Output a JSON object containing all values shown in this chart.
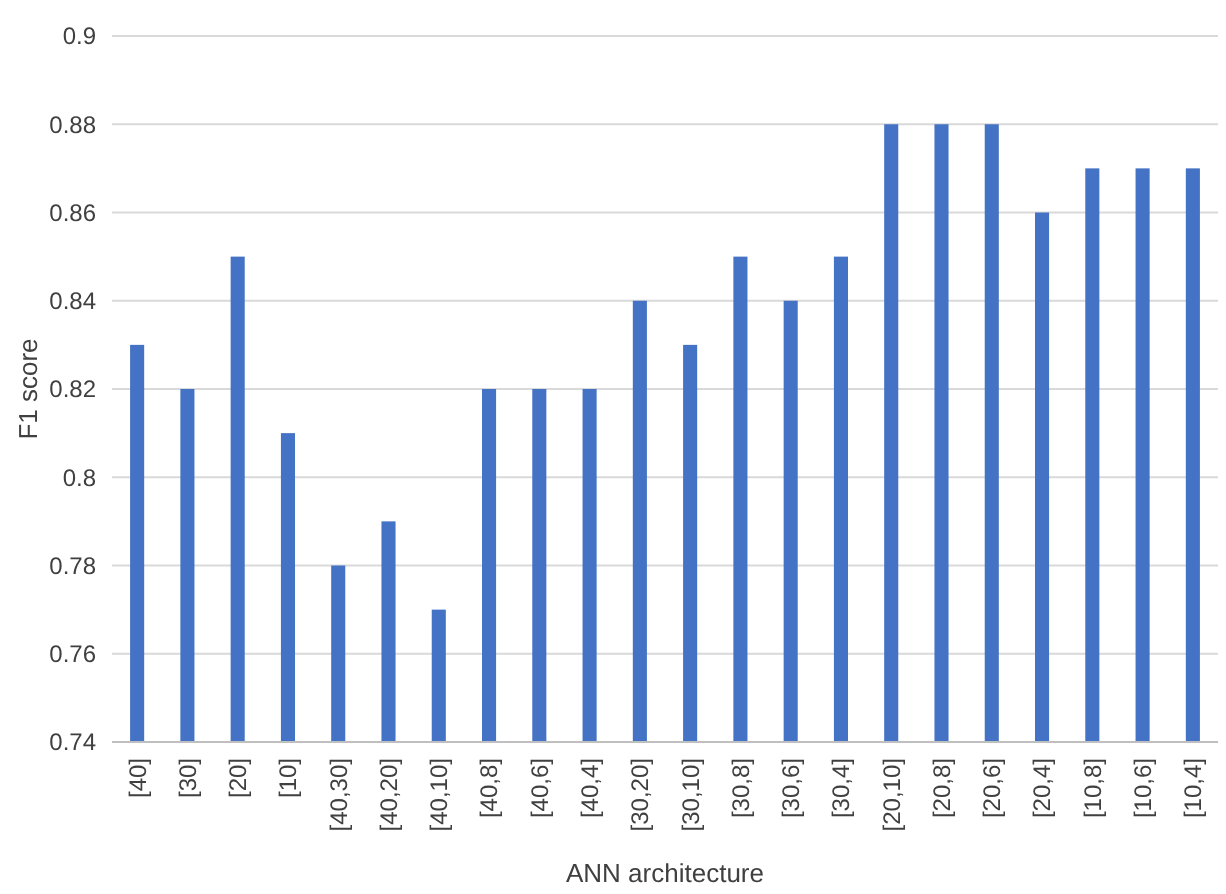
{
  "chart_data": {
    "type": "bar",
    "xlabel": "ANN architecture",
    "ylabel": "F1 score",
    "categories": [
      "[40]",
      "[30]",
      "[20]",
      "[10]",
      "[40,30]",
      "[40,20]",
      "[40,10]",
      "[40,8]",
      "[40,6]",
      "[40,4]",
      "[30,20]",
      "[30,10]",
      "[30,8]",
      "[30,6]",
      "[30,4]",
      "[20,10]",
      "[20,8]",
      "[20,6]",
      "[20,4]",
      "[10,8]",
      "[10,6]",
      "[10,4]"
    ],
    "values": [
      0.83,
      0.82,
      0.85,
      0.81,
      0.78,
      0.79,
      0.77,
      0.82,
      0.82,
      0.82,
      0.84,
      0.83,
      0.85,
      0.84,
      0.85,
      0.88,
      0.88,
      0.88,
      0.86,
      0.87,
      0.87,
      0.87
    ],
    "color": "#4472c4",
    "ylim": [
      0.74,
      0.9
    ],
    "yticks": [
      0.74,
      0.76,
      0.78,
      0.8,
      0.82,
      0.84,
      0.86,
      0.88,
      0.9
    ],
    "grid": "y"
  }
}
